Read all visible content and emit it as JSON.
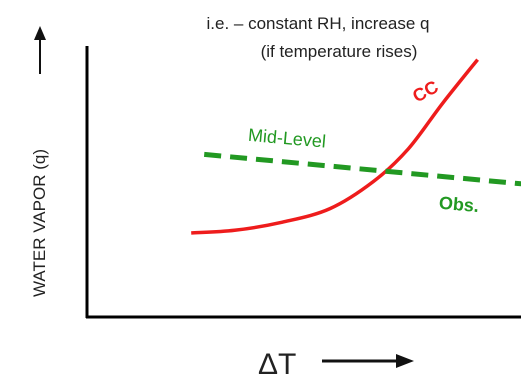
{
  "chart_data": {
    "type": "line",
    "title": "",
    "annotation_line1": "i.e. – constant RH, increase q",
    "annotation_line2": "(if temperature rises)",
    "xlabel": "ΔT",
    "ylabel": "WATER VAPOR (q)",
    "xlim": [
      0,
      100
    ],
    "ylim": [
      0,
      100
    ],
    "grid": false,
    "legend": "none",
    "series": [
      {
        "name": "CC",
        "color": "#ee1c1c",
        "style": "solid",
        "points": [
          [
            24,
            31
          ],
          [
            34,
            32
          ],
          [
            45,
            35
          ],
          [
            56,
            40
          ],
          [
            66,
            50
          ],
          [
            74,
            62
          ],
          [
            82,
            79
          ],
          [
            90,
            95
          ]
        ]
      },
      {
        "name": "Mid-Level",
        "color": "#229922",
        "style": "dashed",
        "points": [
          [
            27,
            60
          ],
          [
            101,
            49
          ]
        ]
      }
    ],
    "series_labels": [
      {
        "text": "CC",
        "color": "#ee1c1c",
        "anchor_data": [
          76,
          79
        ],
        "rotate": -28
      },
      {
        "text": "Mid-Level",
        "color": "#229922",
        "anchor_data": [
          37,
          65
        ],
        "rotate": 5
      },
      {
        "text": "Obs.",
        "color": "#229922",
        "anchor_data": [
          81,
          40
        ],
        "rotate": 5
      }
    ]
  }
}
